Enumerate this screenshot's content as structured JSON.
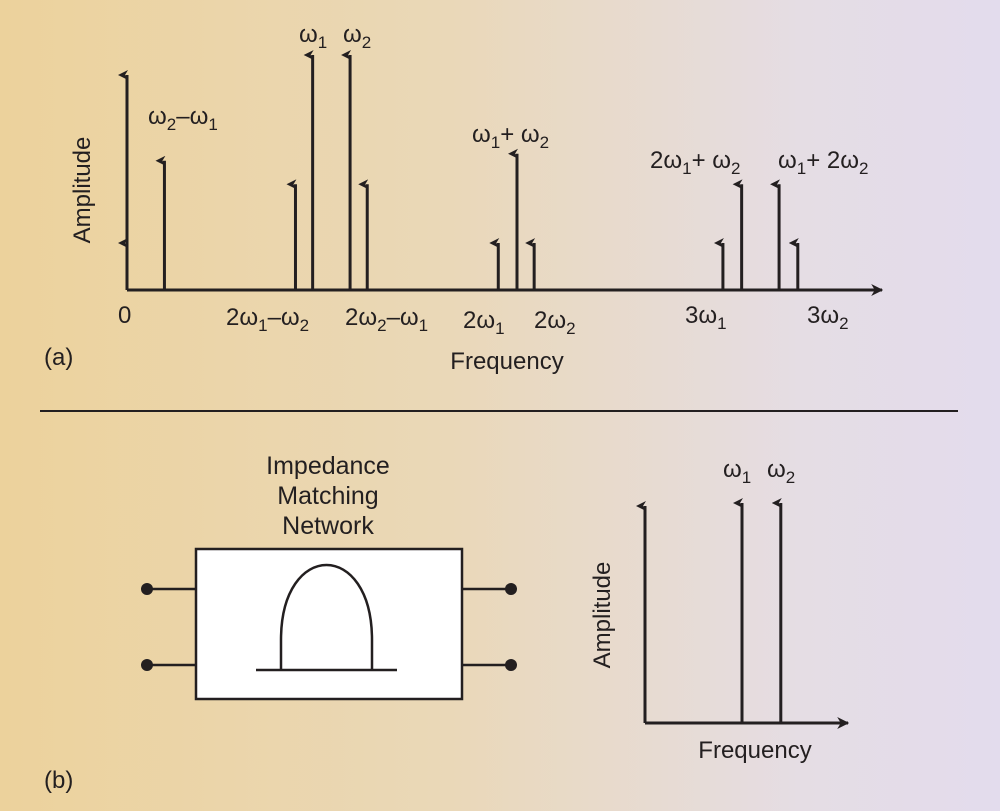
{
  "panel_a": {
    "panel_label": "(a)",
    "y_axis_label": "Amplitude",
    "x_axis_label": "Frequency",
    "spectral_lines": [
      {
        "id": "dc",
        "x": 0,
        "amplitude": 0.2
      },
      {
        "id": "w2-w1",
        "x": 1.2,
        "amplitude": 0.55
      },
      {
        "id": "2w1-w2",
        "x": 5.4,
        "amplitude": 0.45
      },
      {
        "id": "w1",
        "x": 5.95,
        "amplitude": 1.0
      },
      {
        "id": "w2",
        "x": 7.15,
        "amplitude": 1.0
      },
      {
        "id": "2w2-w1",
        "x": 7.7,
        "amplitude": 0.45
      },
      {
        "id": "2w1",
        "x": 11.9,
        "amplitude": 0.2
      },
      {
        "id": "w1+w2",
        "x": 12.5,
        "amplitude": 0.58
      },
      {
        "id": "2w2",
        "x": 13.05,
        "amplitude": 0.2
      },
      {
        "id": "3w1",
        "x": 19.1,
        "amplitude": 0.2
      },
      {
        "id": "2w1+w2",
        "x": 19.7,
        "amplitude": 0.45
      },
      {
        "id": "w1+2w2",
        "x": 20.9,
        "amplitude": 0.45
      },
      {
        "id": "3w2",
        "x": 21.5,
        "amplitude": 0.2
      }
    ],
    "labels": {
      "zero": "0",
      "w1_top": {
        "main": "ω",
        "sub": "1"
      },
      "w2_top": {
        "main": "ω",
        "sub": "2"
      },
      "w2_minus_w1": {
        "a": "ω",
        "a_sub": "2",
        "op": "–",
        "b": "ω",
        "b_sub": "1"
      },
      "w1_plus_w2": {
        "a": "ω",
        "a_sub": "1",
        "op": "+ ",
        "b": "ω",
        "b_sub": "2"
      },
      "2w1_plus_w2": {
        "a": "2ω",
        "a_sub": "1",
        "op": "+ ",
        "b": "ω",
        "b_sub": "2"
      },
      "w1_plus_2w2": {
        "a": "ω",
        "a_sub": "1",
        "op": "+ ",
        "b": "2ω",
        "b_sub": "2"
      },
      "2w1_minus_w2": {
        "a": "2ω",
        "a_sub": "1",
        "op": "–",
        "b": "ω",
        "b_sub": "2"
      },
      "2w2_minus_w1": {
        "a": "2ω",
        "a_sub": "2",
        "op": "–",
        "b": "ω",
        "b_sub": "1"
      },
      "2w1": {
        "main": "2ω",
        "sub": "1"
      },
      "2w2": {
        "main": "2ω",
        "sub": "2"
      },
      "3w1": {
        "main": "3ω",
        "sub": "1"
      },
      "3w2": {
        "main": "3ω",
        "sub": "2"
      }
    }
  },
  "panel_b": {
    "panel_label": "(b)",
    "network_title": [
      "Impedance",
      "Matching",
      "Network"
    ],
    "y_axis_label": "Amplitude",
    "x_axis_label": "Frequency",
    "spectral_lines": [
      {
        "id": "w1",
        "x": 1,
        "amplitude": 1.0
      },
      {
        "id": "w2",
        "x": 1.4,
        "amplitude": 1.0
      }
    ],
    "labels": {
      "w1": {
        "main": "ω",
        "sub": "1"
      },
      "w2": {
        "main": "ω",
        "sub": "2"
      }
    }
  },
  "colors": {
    "ink": "#231f20",
    "box_fill": "#ffffff"
  }
}
